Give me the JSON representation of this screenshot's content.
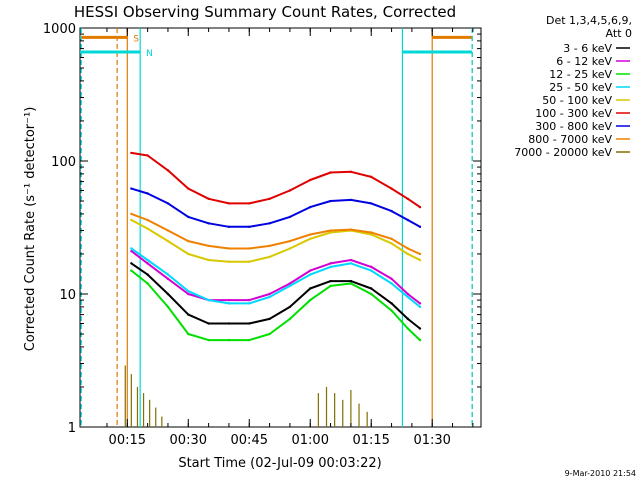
{
  "chart_data": {
    "type": "line",
    "title": "HESSI Observing Summary Count Rates, Corrected",
    "xlabel": "Start Time (02-Jul-09 00:03:22)",
    "ylabel": "Corrected Count Rate (s⁻¹ detector⁻¹)",
    "y_scale": "log",
    "ylim": [
      1,
      1000
    ],
    "xlim": [
      "00:03:22",
      "01:42:00"
    ],
    "grid": false,
    "legend_position": "right",
    "legend_header": [
      "Det 1,3,4,5,6,9,",
      "Att 0"
    ],
    "x_ticks": [
      "00:15",
      "00:30",
      "00:45",
      "01:00",
      "01:15",
      "01:30"
    ],
    "y_ticks": [
      "1",
      "10",
      "100",
      "1000"
    ],
    "timestamp": "9-Mar-2010 21:54",
    "flags": [
      {
        "label": "S",
        "color": "#e07b00",
        "start": "00:03:22",
        "end": "00:15:00",
        "boundaries": [
          "00:12:30",
          "00:15:00",
          "01:30:00",
          "01:39:50"
        ],
        "level": 850,
        "end_span": [
          "01:30:00",
          "01:39:50"
        ]
      },
      {
        "label": "N",
        "color": "#00d8d8",
        "start": "00:03:22",
        "end": "00:18:10",
        "boundaries": [
          "00:03:40",
          "00:18:10",
          "01:22:40",
          "01:39:50"
        ],
        "level": 660,
        "end_span": [
          "01:22:40",
          "01:39:50"
        ]
      }
    ],
    "series": [
      {
        "name": "3 - 6 keV",
        "color": "#000000",
        "t": [
          "00:16:00",
          "00:20:00",
          "00:25:00",
          "00:30:00",
          "00:35:00",
          "00:40:00",
          "00:45:00",
          "00:50:00",
          "00:55:00",
          "01:00:00",
          "01:05:00",
          "01:10:00",
          "01:15:00",
          "01:20:00",
          "01:24:00",
          "01:27:00"
        ],
        "values": [
          17,
          14,
          10,
          7,
          6,
          6,
          6,
          6.5,
          8,
          11,
          12.5,
          12.5,
          11,
          8.5,
          6.5,
          5.5
        ]
      },
      {
        "name": "6 - 12 keV",
        "color": "#d400d4",
        "t": [
          "00:16:00",
          "00:20:00",
          "00:25:00",
          "00:30:00",
          "00:35:00",
          "00:40:00",
          "00:45:00",
          "00:50:00",
          "00:55:00",
          "01:00:00",
          "01:05:00",
          "01:10:00",
          "01:15:00",
          "01:20:00",
          "01:24:00",
          "01:27:00"
        ],
        "values": [
          21,
          17,
          13,
          10,
          9,
          9,
          9,
          10,
          12,
          15,
          17,
          18,
          16,
          13,
          10,
          8.5
        ]
      },
      {
        "name": "12 - 25 keV",
        "color": "#00e000",
        "t": [
          "00:16:00",
          "00:20:00",
          "00:25:00",
          "00:30:00",
          "00:35:00",
          "00:40:00",
          "00:45:00",
          "00:50:00",
          "00:55:00",
          "01:00:00",
          "01:05:00",
          "01:10:00",
          "01:15:00",
          "01:20:00",
          "01:24:00",
          "01:27:00"
        ],
        "values": [
          15,
          12,
          8,
          5,
          4.5,
          4.5,
          4.5,
          5,
          6.5,
          9,
          11.5,
          12,
          10,
          7.5,
          5.5,
          4.5
        ]
      },
      {
        "name": "25 - 50 keV",
        "color": "#00d8ff",
        "t": [
          "00:16:00",
          "00:20:00",
          "00:25:00",
          "00:30:00",
          "00:35:00",
          "00:40:00",
          "00:45:00",
          "00:50:00",
          "00:55:00",
          "01:00:00",
          "01:05:00",
          "01:10:00",
          "01:15:00",
          "01:20:00",
          "01:24:00",
          "01:27:00"
        ],
        "values": [
          22,
          18,
          14,
          10.5,
          9,
          8.5,
          8.5,
          9.5,
          11.5,
          14,
          16,
          17,
          15,
          12,
          9.5,
          8
        ]
      },
      {
        "name": "50 - 100 keV",
        "color": "#d8c800",
        "t": [
          "00:16:00",
          "00:20:00",
          "00:25:00",
          "00:30:00",
          "00:35:00",
          "00:40:00",
          "00:45:00",
          "00:50:00",
          "00:55:00",
          "01:00:00",
          "01:05:00",
          "01:10:00",
          "01:15:00",
          "01:20:00",
          "01:24:00",
          "01:27:00"
        ],
        "values": [
          36,
          31,
          25,
          20,
          18,
          17.5,
          17.5,
          19,
          22,
          26,
          29,
          30,
          28,
          24,
          20,
          18
        ]
      },
      {
        "name": "100 - 300 keV",
        "color": "#e00000",
        "t": [
          "00:16:00",
          "00:20:00",
          "00:25:00",
          "00:30:00",
          "00:35:00",
          "00:40:00",
          "00:45:00",
          "00:50:00",
          "00:55:00",
          "01:00:00",
          "01:05:00",
          "01:10:00",
          "01:15:00",
          "01:20:00",
          "01:24:00",
          "01:27:00"
        ],
        "values": [
          115,
          110,
          85,
          62,
          52,
          48,
          48,
          52,
          60,
          72,
          82,
          83,
          76,
          62,
          52,
          45
        ]
      },
      {
        "name": "300 - 800 keV",
        "color": "#0000e0",
        "t": [
          "00:16:00",
          "00:20:00",
          "00:25:00",
          "00:30:00",
          "00:35:00",
          "00:40:00",
          "00:45:00",
          "00:50:00",
          "00:55:00",
          "01:00:00",
          "01:05:00",
          "01:10:00",
          "01:15:00",
          "01:20:00",
          "01:24:00",
          "01:27:00"
        ],
        "values": [
          62,
          57,
          48,
          38,
          34,
          32,
          32,
          34,
          38,
          45,
          50,
          51,
          48,
          42,
          36,
          32
        ]
      },
      {
        "name": "800 - 7000 keV",
        "color": "#f08000",
        "t": [
          "00:16:00",
          "00:20:00",
          "00:25:00",
          "00:30:00",
          "00:35:00",
          "00:40:00",
          "00:45:00",
          "00:50:00",
          "00:55:00",
          "01:00:00",
          "01:05:00",
          "01:10:00",
          "01:15:00",
          "01:20:00",
          "01:24:00",
          "01:27:00"
        ],
        "values": [
          40,
          36,
          30,
          25,
          23,
          22,
          22,
          23,
          25,
          28,
          30,
          30.5,
          29,
          26,
          22,
          20
        ]
      },
      {
        "name": "7000 - 20000 keV",
        "color": "#807000",
        "t": [
          "00:14:30",
          "00:16:00",
          "00:17:30",
          "00:19:00",
          "00:20:30",
          "00:22:00",
          "00:23:30",
          "01:02:00",
          "01:04:00",
          "01:06:00",
          "01:08:00",
          "01:10:00",
          "01:12:00",
          "01:14:00"
        ],
        "values": [
          2.9,
          2.5,
          2.0,
          1.8,
          1.6,
          1.4,
          1.2,
          1.8,
          2.0,
          1.8,
          1.6,
          1.9,
          1.5,
          1.3
        ]
      }
    ]
  }
}
